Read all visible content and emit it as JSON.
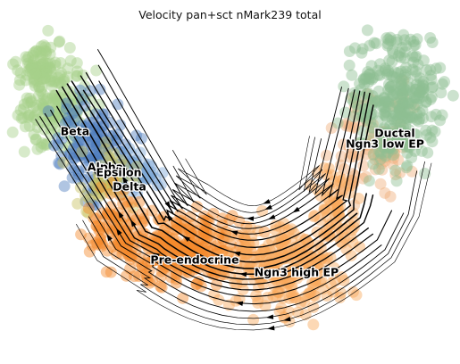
{
  "chart_data": {
    "type": "scatter",
    "subtype": "velocity-stream-embedding",
    "title": "Velocity pan+sct nMark239 total",
    "xlabel": "",
    "ylabel": "",
    "axes_visible": false,
    "grid": false,
    "legend": "on data",
    "streamlines": true,
    "stream_color": "#000000",
    "clusters": [
      {
        "name": "Beta",
        "color": "#a6d08a"
      },
      {
        "name": "Alpha",
        "color": "#4f7fbf"
      },
      {
        "name": "Epsilon",
        "color": "#c8c060"
      },
      {
        "name": "Delta",
        "color": "#7fa8d8"
      },
      {
        "name": "Pre-endocrine",
        "color": "#f58a2c"
      },
      {
        "name": "Ngn3 high EP",
        "color": "#f8a85c"
      },
      {
        "name": "Ductal",
        "color": "#8fbf93"
      },
      {
        "name": "Ngn3 low EP",
        "color": "#f0b07c"
      }
    ]
  }
}
